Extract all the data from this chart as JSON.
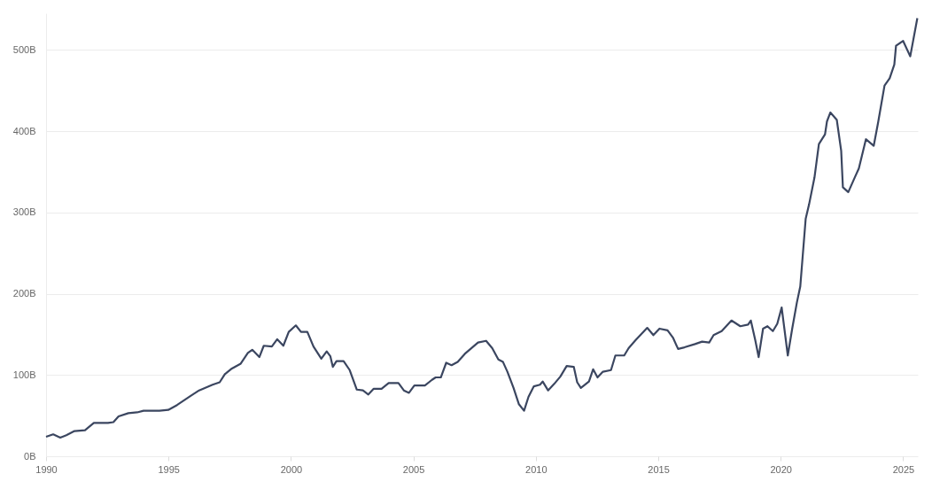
{
  "chart_data": {
    "type": "line",
    "x": [
      1990.0,
      1990.29,
      1990.58,
      1990.83,
      1991.16,
      1991.59,
      1991.95,
      1992.53,
      1992.75,
      1992.96,
      1993.36,
      1993.72,
      1993.98,
      1994.63,
      1994.99,
      1995.35,
      1995.89,
      1996.25,
      1996.8,
      1997.09,
      1997.3,
      1997.59,
      1997.95,
      1998.24,
      1998.42,
      1998.71,
      1998.89,
      1999.22,
      1999.44,
      1999.69,
      1999.91,
      2000.2,
      2000.41,
      2000.67,
      2000.92,
      2001.24,
      2001.46,
      2001.61,
      2001.71,
      2001.86,
      2002.15,
      2002.4,
      2002.69,
      2002.94,
      2003.16,
      2003.38,
      2003.7,
      2003.99,
      2004.39,
      2004.61,
      2004.82,
      2005.04,
      2005.47,
      2005.76,
      2005.91,
      2006.12,
      2006.34,
      2006.56,
      2006.81,
      2007.1,
      2007.64,
      2007.97,
      2008.22,
      2008.47,
      2008.66,
      2008.84,
      2009.09,
      2009.31,
      2009.52,
      2009.7,
      2009.92,
      2010.17,
      2010.28,
      2010.5,
      2010.75,
      2011.0,
      2011.26,
      2011.55,
      2011.69,
      2011.84,
      2012.17,
      2012.34,
      2012.52,
      2012.74,
      2013.07,
      2013.25,
      2013.61,
      2013.79,
      2014.08,
      2014.55,
      2014.8,
      2015.05,
      2015.38,
      2015.6,
      2015.81,
      2016.07,
      2016.5,
      2016.79,
      2017.08,
      2017.26,
      2017.59,
      2017.99,
      2018.35,
      2018.67,
      2018.78,
      2018.96,
      2019.1,
      2019.28,
      2019.46,
      2019.68,
      2019.86,
      2020.04,
      2020.29,
      2020.47,
      2020.66,
      2020.8,
      2021.02,
      2021.16,
      2021.38,
      2021.56,
      2021.81,
      2021.89,
      2022.03,
      2022.29,
      2022.47,
      2022.54,
      2022.76,
      2023.04,
      2023.19,
      2023.48,
      2023.8,
      2023.98,
      2024.24,
      2024.45,
      2024.64,
      2024.71,
      2025.0,
      2025.29,
      2025.58
    ],
    "series": [
      {
        "color": "#3b4660",
        "values": [
          24,
          27,
          23,
          26,
          31,
          32,
          41,
          41,
          42,
          49,
          53,
          54,
          56,
          56,
          57,
          63,
          74,
          81,
          88,
          91,
          101,
          108,
          114,
          127,
          131,
          122,
          136,
          135,
          144,
          136,
          153,
          161,
          153,
          153,
          135,
          120,
          129,
          123,
          110,
          117,
          117,
          106,
          82,
          81,
          76,
          83,
          83,
          90,
          90,
          81,
          78,
          87,
          87,
          94,
          97,
          97,
          115,
          112,
          116,
          126,
          140,
          142,
          133,
          119,
          116,
          104,
          84,
          64,
          56,
          73,
          86,
          88,
          92,
          81,
          89,
          98,
          111,
          110,
          91,
          84,
          92,
          107,
          97,
          104,
          106,
          124,
          124,
          133,
          143,
          158,
          149,
          157,
          155,
          146,
          132,
          134,
          138,
          141,
          140,
          149,
          154,
          167,
          160,
          162,
          167,
          143,
          122,
          157,
          160,
          154,
          163,
          183,
          124,
          157,
          189,
          209,
          292,
          310,
          343,
          384,
          396,
          412,
          423,
          414,
          376,
          331,
          325,
          344,
          354,
          390,
          382,
          411,
          456,
          465,
          482,
          505,
          511,
          492,
          539
        ]
      }
    ],
    "xlim": [
      1990,
      2025.6
    ],
    "xticks": [
      1990,
      1995,
      2000,
      2005,
      2010,
      2015,
      2020,
      2025
    ],
    "ylim": [
      0,
      545
    ],
    "yticks": [
      {
        "value": 0,
        "label": "0B"
      },
      {
        "value": 100,
        "label": "100B"
      },
      {
        "value": 200,
        "label": "200B"
      },
      {
        "value": 300,
        "label": "300B"
      },
      {
        "value": 400,
        "label": "400B"
      },
      {
        "value": 500,
        "label": "500B"
      }
    ],
    "grid": "y",
    "line_style": "solid"
  }
}
